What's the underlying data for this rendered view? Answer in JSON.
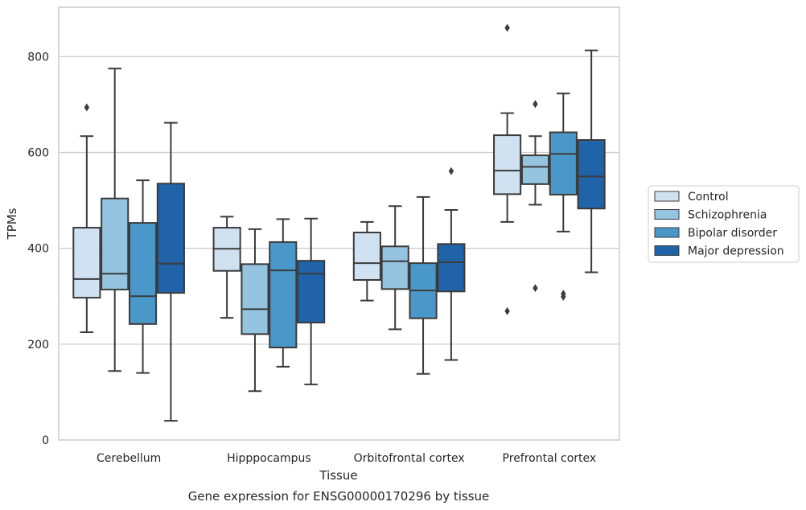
{
  "chart_data": {
    "type": "box",
    "title": "Gene expression for ENSG00000170296 by tissue",
    "xlabel": "Tissue",
    "ylabel": "TPMs",
    "ylim": [
      0,
      903
    ],
    "yticks": [
      0,
      200,
      400,
      600,
      800
    ],
    "grid": "horizontal",
    "legend_position": "right",
    "categories": [
      "Cerebellum",
      "Hipppocampus",
      "Orbitofrontal cortex",
      "Prefrontal cortex"
    ],
    "series": [
      {
        "name": "Control",
        "color": "#d0e1f2",
        "boxes": [
          {
            "whisker_low": 225,
            "q1": 297,
            "median": 336,
            "q3": 443,
            "whisker_high": 634,
            "outliers": [
              694
            ]
          },
          {
            "whisker_low": 255,
            "q1": 353,
            "median": 399,
            "q3": 443,
            "whisker_high": 466,
            "outliers": []
          },
          {
            "whisker_low": 291,
            "q1": 334,
            "median": 369,
            "q3": 433,
            "whisker_high": 455,
            "outliers": []
          },
          {
            "whisker_low": 455,
            "q1": 513,
            "median": 562,
            "q3": 636,
            "whisker_high": 682,
            "outliers": [
              860,
              269
            ]
          }
        ]
      },
      {
        "name": "Schizophrenia",
        "color": "#94c4df",
        "boxes": [
          {
            "whisker_low": 144,
            "q1": 314,
            "median": 347,
            "q3": 504,
            "whisker_high": 775,
            "outliers": []
          },
          {
            "whisker_low": 102,
            "q1": 221,
            "median": 273,
            "q3": 367,
            "whisker_high": 440,
            "outliers": []
          },
          {
            "whisker_low": 231,
            "q1": 315,
            "median": 373,
            "q3": 404,
            "whisker_high": 488,
            "outliers": []
          },
          {
            "whisker_low": 491,
            "q1": 534,
            "median": 570,
            "q3": 594,
            "whisker_high": 634,
            "outliers": [
              701,
              317
            ]
          }
        ]
      },
      {
        "name": "Bipolar disorder",
        "color": "#4a98c9",
        "boxes": [
          {
            "whisker_low": 140,
            "q1": 242,
            "median": 300,
            "q3": 453,
            "whisker_high": 542,
            "outliers": []
          },
          {
            "whisker_low": 153,
            "q1": 193,
            "median": 354,
            "q3": 413,
            "whisker_high": 461,
            "outliers": []
          },
          {
            "whisker_low": 138,
            "q1": 254,
            "median": 312,
            "q3": 369,
            "whisker_high": 507,
            "outliers": []
          },
          {
            "whisker_low": 435,
            "q1": 512,
            "median": 597,
            "q3": 642,
            "whisker_high": 723,
            "outliers": [
              305,
              299
            ]
          }
        ]
      },
      {
        "name": "Major depression",
        "color": "#2163a8",
        "boxes": [
          {
            "whisker_low": 40,
            "q1": 307,
            "median": 368,
            "q3": 535,
            "whisker_high": 662,
            "outliers": []
          },
          {
            "whisker_low": 116,
            "q1": 245,
            "median": 347,
            "q3": 374,
            "whisker_high": 462,
            "outliers": []
          },
          {
            "whisker_low": 167,
            "q1": 310,
            "median": 371,
            "q3": 409,
            "whisker_high": 480,
            "outliers": [
              561
            ]
          },
          {
            "whisker_low": 350,
            "q1": 483,
            "median": 550,
            "q3": 626,
            "whisker_high": 813,
            "outliers": []
          }
        ]
      }
    ]
  }
}
